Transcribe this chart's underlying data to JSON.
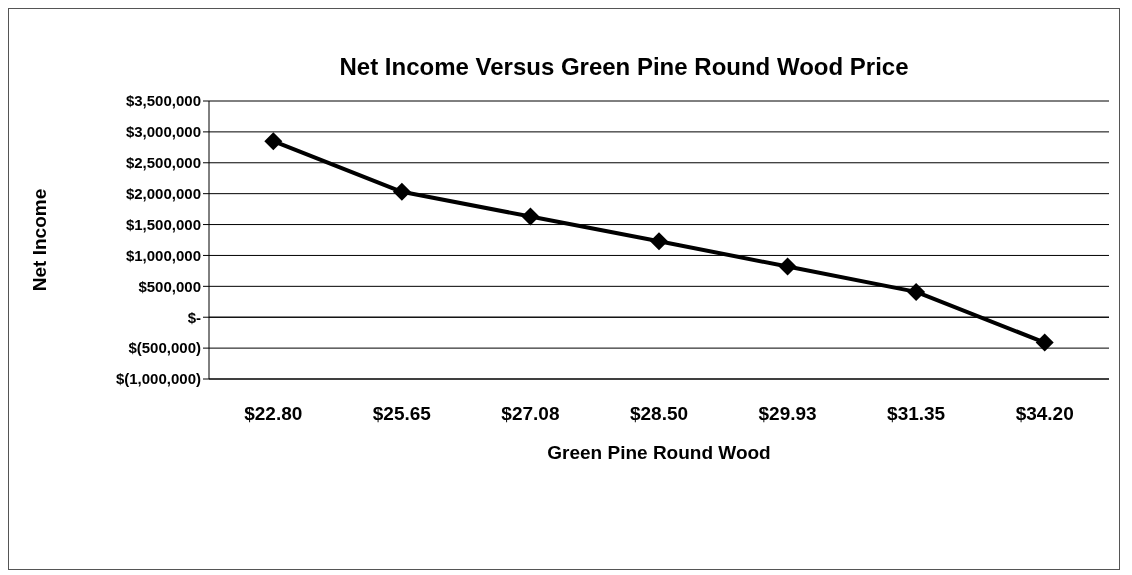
{
  "chart_data": {
    "type": "line",
    "title": "Net Income Versus Green Pine Round Wood Price",
    "xlabel": "Green Pine Round Wood",
    "ylabel": "Net Income",
    "categories": [
      "$22.80",
      "$25.65",
      "$27.08",
      "$28.50",
      "$29.93",
      "$31.35",
      "$34.20"
    ],
    "series": [
      {
        "color": "#000000",
        "values": [
          2850000,
          2030000,
          1630000,
          1230000,
          820000,
          410000,
          -410000
        ]
      }
    ],
    "ylim": [
      -1000000,
      3500000
    ],
    "yticks": [
      {
        "value": -1000000,
        "label": "$(1,000,000)"
      },
      {
        "value": -500000,
        "label": "$(500,000)"
      },
      {
        "value": 0,
        "label": "$-"
      },
      {
        "value": 500000,
        "label": "$500,000"
      },
      {
        "value": 1000000,
        "label": "$1,000,000"
      },
      {
        "value": 1500000,
        "label": "$1,500,000"
      },
      {
        "value": 2000000,
        "label": "$2,000,000"
      },
      {
        "value": 2500000,
        "label": "$2,500,000"
      },
      {
        "value": 3000000,
        "label": "$3,000,000"
      },
      {
        "value": 3500000,
        "label": "$3,500,000"
      }
    ],
    "grid": "y",
    "marker": "diamond",
    "line_style": "solid"
  }
}
